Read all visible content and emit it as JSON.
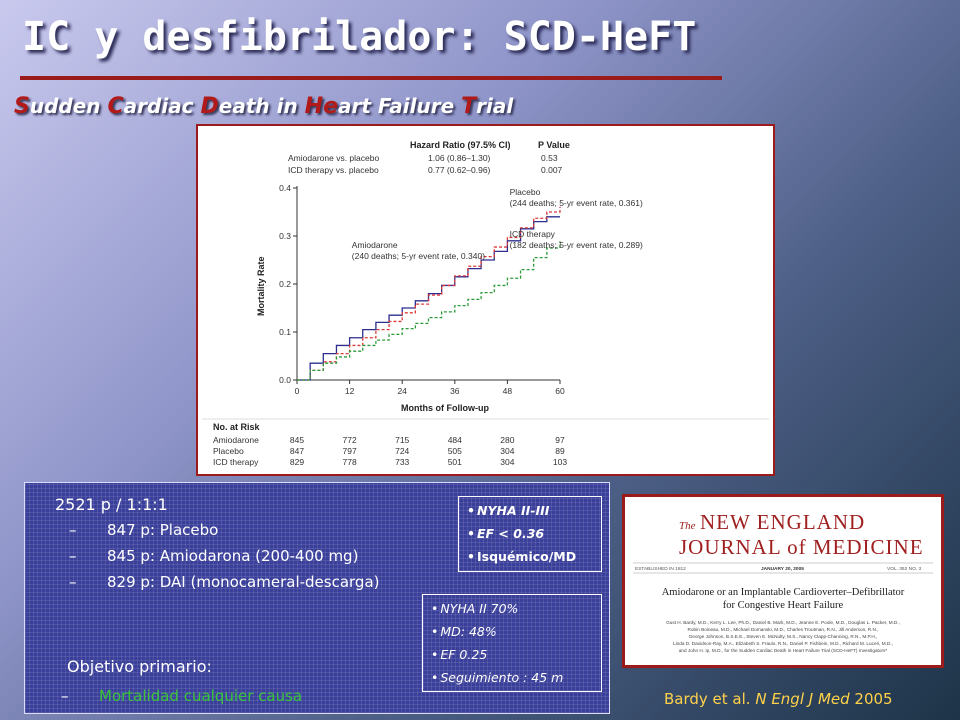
{
  "slide": {
    "title": "IC y desfibrilador: SCD-HeFT",
    "subtitle_parts": [
      {
        "cap": "S",
        "rest": "udden "
      },
      {
        "cap": "C",
        "rest": "ardiac "
      },
      {
        "cap": "D",
        "rest": "eath in "
      },
      {
        "cap": "He",
        "rest": "art Failure "
      },
      {
        "cap": "T",
        "rest": "rial"
      }
    ],
    "accent_color": "#9b1b1b"
  },
  "hazard_table": {
    "headers": [
      "Hazard Ratio (97.5% CI)",
      "P Value"
    ],
    "rows": [
      {
        "label": "Amiodarone vs. placebo",
        "hr": "1.06 (0.86–1.30)",
        "p": "0.53"
      },
      {
        "label": "ICD therapy vs. placebo",
        "hr": "0.77 (0.62–0.96)",
        "p": "0.007"
      }
    ]
  },
  "chart_data": {
    "type": "line",
    "xlabel": "Months of Follow-up",
    "ylabel": "Mortality Rate",
    "xlim": [
      0,
      60
    ],
    "ylim": [
      0,
      0.4
    ],
    "xticks": [
      0,
      12,
      24,
      36,
      48,
      60
    ],
    "yticks": [
      0.0,
      0.1,
      0.2,
      0.3,
      0.4
    ],
    "series": [
      {
        "name": "Amiodarone",
        "color": "#2c2f8f",
        "dash": "",
        "x": [
          0,
          3,
          6,
          9,
          12,
          15,
          18,
          21,
          24,
          27,
          30,
          33,
          36,
          39,
          42,
          45,
          48,
          51,
          54,
          57,
          60
        ],
        "y": [
          0,
          0.035,
          0.055,
          0.072,
          0.088,
          0.105,
          0.12,
          0.135,
          0.15,
          0.165,
          0.18,
          0.197,
          0.215,
          0.232,
          0.25,
          0.268,
          0.29,
          0.315,
          0.33,
          0.34,
          0.34
        ]
      },
      {
        "name": "Placebo",
        "color": "#d93b3b",
        "dash": "3,2",
        "x": [
          0,
          3,
          6,
          9,
          12,
          15,
          18,
          21,
          24,
          27,
          30,
          33,
          36,
          39,
          42,
          45,
          48,
          51,
          54,
          57,
          60
        ],
        "y": [
          0,
          0.02,
          0.038,
          0.055,
          0.072,
          0.088,
          0.105,
          0.122,
          0.14,
          0.158,
          0.177,
          0.197,
          0.217,
          0.237,
          0.257,
          0.277,
          0.297,
          0.317,
          0.337,
          0.35,
          0.361
        ]
      },
      {
        "name": "ICD therapy",
        "color": "#2f9a3a",
        "dash": "3,2",
        "x": [
          0,
          3,
          6,
          9,
          12,
          15,
          18,
          21,
          24,
          27,
          30,
          33,
          36,
          39,
          42,
          45,
          48,
          51,
          54,
          57,
          60
        ],
        "y": [
          0,
          0.02,
          0.035,
          0.048,
          0.06,
          0.072,
          0.083,
          0.095,
          0.107,
          0.118,
          0.13,
          0.142,
          0.155,
          0.168,
          0.182,
          0.197,
          0.212,
          0.23,
          0.255,
          0.275,
          0.289
        ]
      }
    ],
    "annotations": [
      {
        "text": "Placebo",
        "x": 48.5,
        "y": 0.385
      },
      {
        "text": "(244 deaths; 5-yr event rate, 0.361)",
        "x": 48.5,
        "y": 0.362
      },
      {
        "text": "ICD therapy",
        "x": 48.5,
        "y": 0.298
      },
      {
        "text": "(182 deaths; 5-yr event rate, 0.289)",
        "x": 48.5,
        "y": 0.275
      },
      {
        "text": "Amiodarone",
        "x": 12.5,
        "y": 0.275
      },
      {
        "text": "(240 deaths; 5-yr event rate, 0.340)",
        "x": 12.5,
        "y": 0.252
      }
    ]
  },
  "at_risk": {
    "title": "No. at Risk",
    "rows": [
      {
        "label": "Amiodarone",
        "values": [
          "845",
          "772",
          "715",
          "484",
          "280",
          "97"
        ]
      },
      {
        "label": "Placebo",
        "values": [
          "847",
          "797",
          "724",
          "505",
          "304",
          "89"
        ]
      },
      {
        "label": "ICD therapy",
        "values": [
          "829",
          "778",
          "733",
          "501",
          "304",
          "103"
        ]
      }
    ]
  },
  "study": {
    "headline": "2521 p / 1:1:1",
    "bullets": [
      "847 p: Placebo",
      "845 p: Amiodarona (200-400 mg)",
      "829 p: DAI (monocameral-descarga)"
    ],
    "dash": "–",
    "objective_label": "Objetivo primario:",
    "objective_item": "Mortalidad cualquier causa"
  },
  "criteria": [
    "NYHA II-III",
    "EF < 0.36",
    "Isquémico/MD"
  ],
  "population": [
    "NYHA II 70%",
    "MD: 48%",
    "EF 0.25",
    "Seguimiento : 45 m"
  ],
  "journal": {
    "the": "The",
    "name_line1": "NEW ENGLAND",
    "name_line2": "JOURNAL of MEDICINE",
    "established": "ESTABLISHED IN 1812",
    "date": "JANUARY 20, 2005",
    "volume": "VOL. 352  NO. 3",
    "article_title_1": "Amiodarone or an Implantable Cardioverter–Defibrillator",
    "article_title_2": "for Congestive Heart Failure",
    "authors": [
      "Gust H. Bardy, M.D., Kerry L. Lee, Ph.D., Daniel B. Mark, M.D., Jeanne E. Poole, M.D., Douglas L. Packer, M.D.,",
      "Robin Boineau, M.D., Michael Domanski, M.D., Charles Troutman, R.N., Jill Anderson, R.N.,",
      "George Johnson, B.S.E.E., Steven E. McNulty, M.S., Nancy Clapp-Channing, R.N., M.P.H.,",
      "Linda D. Davidson-Ray, M.A., Elizabeth S. Fraulo, R.N., Daniel P. Fishbein, M.D., Richard M. Luceri, M.D.,",
      "and John H. Ip, M.D., for the Sudden Cardiac Death in Heart Failure Trial (SCD-HeFT) Investigators*"
    ]
  },
  "reference": {
    "authors": "Bardy et al. ",
    "journal": "N Engl J Med",
    "year": " 2005"
  }
}
